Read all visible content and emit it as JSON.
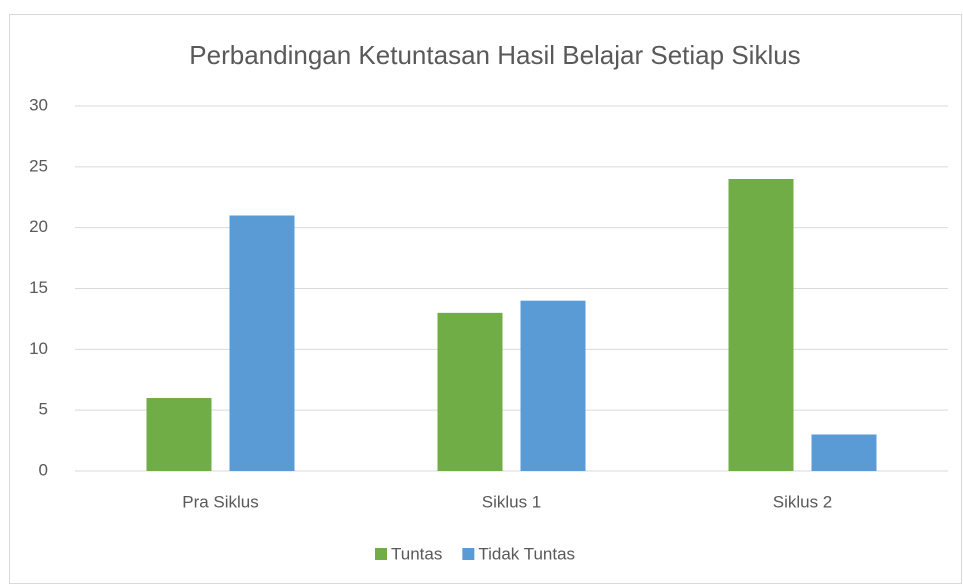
{
  "chart_data": {
    "type": "bar",
    "title": "Perbandingan Ketuntasan Hasil Belajar Setiap Siklus",
    "categories": [
      "Pra Siklus",
      "Siklus 1",
      "Siklus 2"
    ],
    "series": [
      {
        "name": "Tuntas",
        "color": "#70ad47",
        "values": [
          6,
          13,
          24
        ]
      },
      {
        "name": "Tidak Tuntas",
        "color": "#5b9bd5",
        "values": [
          21,
          14,
          3
        ]
      }
    ],
    "ylim": [
      0,
      30
    ],
    "yticks": [
      0,
      5,
      10,
      15,
      20,
      25,
      30
    ],
    "grid": true,
    "legend": "bottom"
  }
}
